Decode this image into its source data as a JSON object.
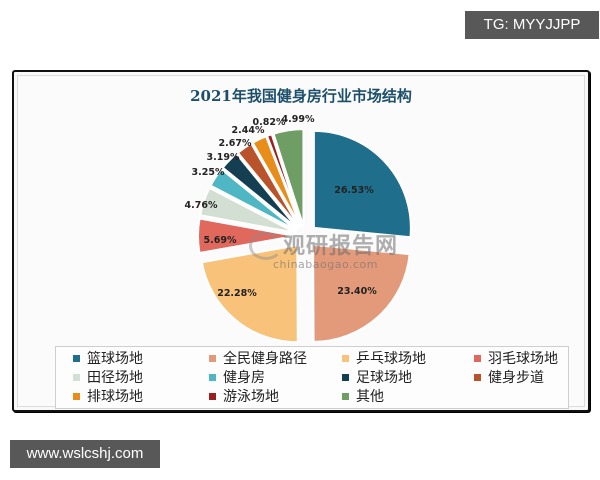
{
  "overlay": {
    "top_tag": "TG: MYYJJPP",
    "bottom_tag": "www.wslcshj.com"
  },
  "watermark": {
    "cn": "观研报告网",
    "en": "chinabaogao.com"
  },
  "chart_data": {
    "type": "pie",
    "title": "2021年我国健身房行业市场结构",
    "categories": [
      "篮球场地",
      "全民健身路径",
      "乒乓球场地",
      "羽毛球场地",
      "田径场地",
      "健身房",
      "足球场地",
      "健身步道",
      "排球场地",
      "游泳场地",
      "其他"
    ],
    "values": [
      26.53,
      23.4,
      22.28,
      5.69,
      4.76,
      3.25,
      3.19,
      2.67,
      2.44,
      0.82,
      4.99
    ],
    "labels": [
      "26.53%",
      "23.40%",
      "22.28%",
      "5.69%",
      "4.76%",
      "3.25%",
      "3.19%",
      "2.67%",
      "2.44%",
      "0.82%",
      "4.99%"
    ],
    "colors": [
      "#1f6e8c",
      "#e39a7a",
      "#f8c27a",
      "#e0685c",
      "#d3dfd3",
      "#4fb6c4",
      "#143f52",
      "#b8532b",
      "#e88d1a",
      "#9b1f1f",
      "#6f9e64"
    ],
    "start_angle": "12 o'clock, clockwise",
    "exploded": true,
    "legend_position": "bottom",
    "unit": "%"
  },
  "legend": {
    "items": [
      {
        "label": "篮球场地",
        "color": "#1f6e8c"
      },
      {
        "label": "全民健身路径",
        "color": "#e39a7a"
      },
      {
        "label": "乒乓球场地",
        "color": "#f8c27a"
      },
      {
        "label": "羽毛球场地",
        "color": "#e0685c"
      },
      {
        "label": "田径场地",
        "color": "#d3dfd3"
      },
      {
        "label": "健身房",
        "color": "#4fb6c4"
      },
      {
        "label": "足球场地",
        "color": "#143f52"
      },
      {
        "label": "健身步道",
        "color": "#b8532b"
      },
      {
        "label": "排球场地",
        "color": "#e88d1a"
      },
      {
        "label": "游泳场地",
        "color": "#9b1f1f"
      },
      {
        "label": "其他",
        "color": "#6f9e64"
      }
    ]
  }
}
